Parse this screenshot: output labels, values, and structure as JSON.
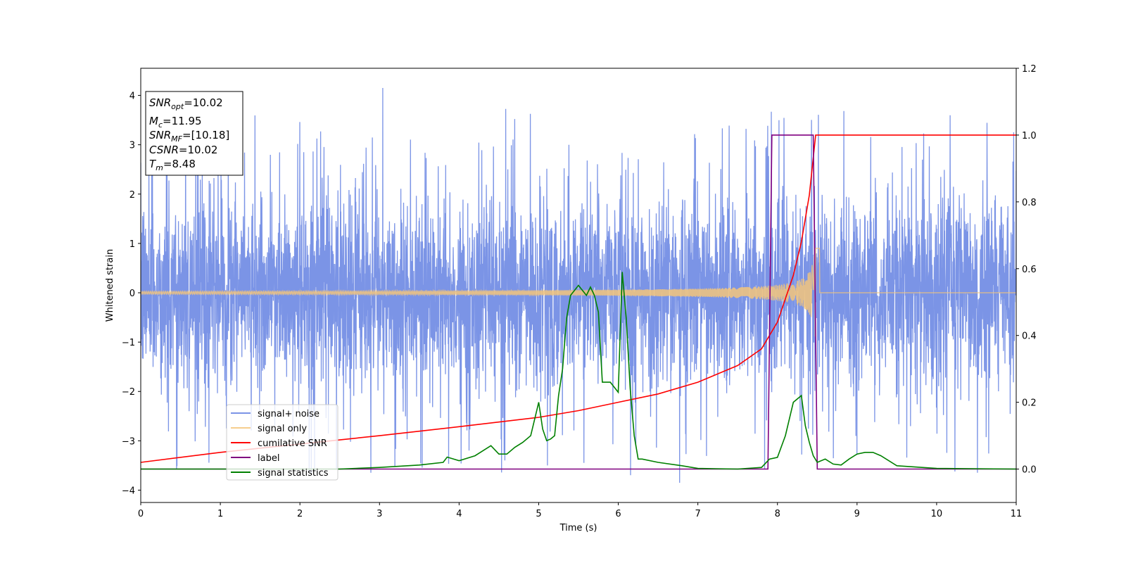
{
  "chart_data": {
    "type": "line",
    "title": "",
    "xlabel": "Time (s)",
    "ylabel": "Whitened strain",
    "xlim": [
      0,
      11
    ],
    "ylim": [
      -4.25,
      4.55
    ],
    "y2lim": [
      -0.1,
      1.2
    ],
    "x_ticks": [
      "0",
      "1",
      "2",
      "3",
      "4",
      "5",
      "6",
      "7",
      "8",
      "9",
      "10",
      "11"
    ],
    "y_ticks": [
      "−4",
      "−3",
      "−2",
      "−1",
      "0",
      "1",
      "2",
      "3",
      "4"
    ],
    "y2_ticks": [
      "0.0",
      "0.2",
      "0.4",
      "0.6",
      "0.8",
      "1.0",
      "1.2"
    ],
    "legend_position": "lower-left",
    "annotation": {
      "snr_opt": {
        "base": "SNR",
        "sub": "opt",
        "value": "=10.02"
      },
      "mc": {
        "base": "M",
        "sub": "c",
        "value": "=11.95"
      },
      "snr_mf": {
        "base": "SNR",
        "sub": "MF",
        "value": "=[10.18]"
      },
      "csnr": {
        "base": "CSNR",
        "sub": "",
        "value": "=10.02"
      },
      "tm": {
        "base": "T",
        "sub": "m",
        "value": "=8.48"
      }
    },
    "series": [
      {
        "name": "signal+ noise",
        "color": "#7b94e6",
        "axis": "left",
        "kind": "noise",
        "amplitude_typical": 1.6,
        "amplitude_max": 4.15,
        "amplitude_min": -3.85
      },
      {
        "name": "signal only",
        "color": "#f5c57a",
        "axis": "left",
        "kind": "chirp",
        "start": 0,
        "merger": 8.48,
        "amplitude_start": 0.03,
        "amplitude_peak": 0.9
      },
      {
        "name": "cumilative SNR",
        "color": "#ff0000",
        "axis": "right",
        "kind": "curve",
        "x": [
          0,
          1,
          2,
          3,
          4,
          5,
          5.5,
          6,
          6.5,
          7,
          7.5,
          7.8,
          8.0,
          8.2,
          8.3,
          8.4,
          8.48,
          11
        ],
        "y": [
          0.02,
          0.05,
          0.075,
          0.1,
          0.127,
          0.155,
          0.175,
          0.2,
          0.225,
          0.26,
          0.31,
          0.36,
          0.44,
          0.58,
          0.68,
          0.82,
          1.0,
          1.0
        ]
      },
      {
        "name": "label",
        "color": "#800080",
        "axis": "right",
        "kind": "curve",
        "x": [
          0,
          7.88,
          7.93,
          8.45,
          8.5,
          11
        ],
        "y": [
          0,
          0,
          1,
          1,
          0,
          0
        ]
      },
      {
        "name": "signal statistics",
        "color": "#008000",
        "axis": "right",
        "kind": "curve",
        "x": [
          0,
          2.5,
          3.0,
          3.5,
          3.8,
          3.85,
          4.0,
          4.2,
          4.3,
          4.4,
          4.5,
          4.6,
          4.7,
          4.8,
          4.9,
          5.0,
          5.05,
          5.1,
          5.15,
          5.2,
          5.25,
          5.3,
          5.35,
          5.4,
          5.5,
          5.6,
          5.65,
          5.7,
          5.75,
          5.8,
          5.9,
          6.0,
          6.05,
          6.1,
          6.15,
          6.2,
          6.25,
          6.3,
          6.5,
          6.8,
          7.0,
          7.5,
          7.8,
          7.9,
          8.0,
          8.1,
          8.2,
          8.3,
          8.35,
          8.4,
          8.45,
          8.5,
          8.6,
          8.7,
          8.8,
          8.9,
          9.0,
          9.1,
          9.2,
          9.3,
          9.5,
          10.0,
          11
        ],
        "y": [
          0,
          0,
          0.005,
          0.012,
          0.02,
          0.036,
          0.025,
          0.04,
          0.055,
          0.07,
          0.045,
          0.045,
          0.065,
          0.08,
          0.1,
          0.2,
          0.12,
          0.085,
          0.09,
          0.1,
          0.22,
          0.3,
          0.45,
          0.52,
          0.55,
          0.52,
          0.545,
          0.52,
          0.47,
          0.26,
          0.26,
          0.23,
          0.59,
          0.45,
          0.24,
          0.1,
          0.03,
          0.03,
          0.02,
          0.01,
          0.002,
          0,
          0.005,
          0.03,
          0.035,
          0.1,
          0.2,
          0.22,
          0.13,
          0.08,
          0.04,
          0.02,
          0.03,
          0.015,
          0.012,
          0.03,
          0.045,
          0.05,
          0.05,
          0.04,
          0.01,
          0.002,
          0
        ]
      }
    ]
  }
}
